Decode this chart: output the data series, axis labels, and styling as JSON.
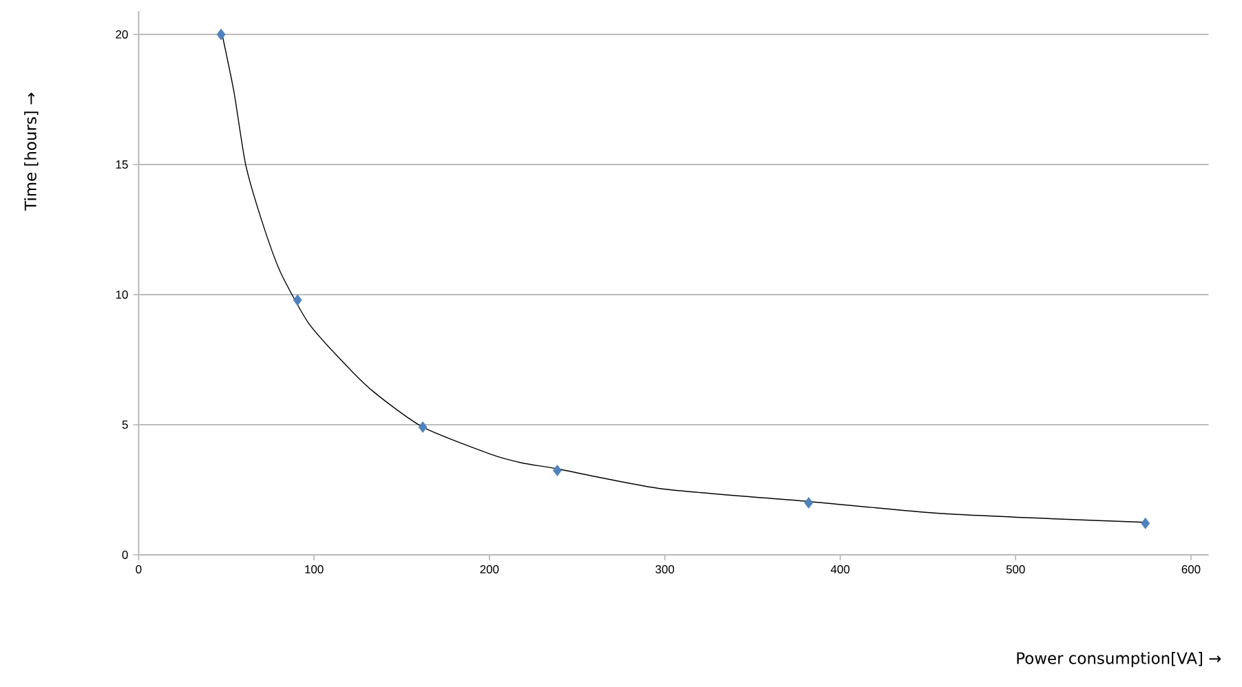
{
  "chart_data": {
    "type": "scatter",
    "xlabel": "Power consumption[VA] →",
    "ylabel": "Time [hours] →",
    "marker": "diamond",
    "grid": "y",
    "xlim": [
      0,
      610
    ],
    "ylim": [
      0,
      20.9
    ],
    "xticks": [
      0,
      100,
      200,
      300,
      400,
      500,
      600
    ],
    "yticks": [
      0,
      5,
      10,
      15,
      20
    ],
    "series": [
      {
        "color": "#4f81bd",
        "x": [
          47,
          90.6,
          162,
          238.7,
          382,
          574
        ],
        "values": [
          20.0,
          9.79,
          4.91,
          3.24,
          2.0,
          1.21
        ]
      },
      {
        "type": "line",
        "color": "#000000",
        "marker": "none",
        "x": [
          47.6,
          54.4,
          61.0,
          70.2,
          80.6,
          96.3,
          112,
          133,
          162,
          201,
          219.4,
          239,
          298,
          382,
          455,
          520,
          574
        ],
        "values": [
          20.0,
          17.77,
          15.0,
          12.84,
          10.9,
          8.96,
          7.73,
          6.32,
          4.91,
          3.86,
          3.52,
          3.3,
          2.54,
          2.05,
          1.6,
          1.39,
          1.25
        ]
      }
    ]
  }
}
